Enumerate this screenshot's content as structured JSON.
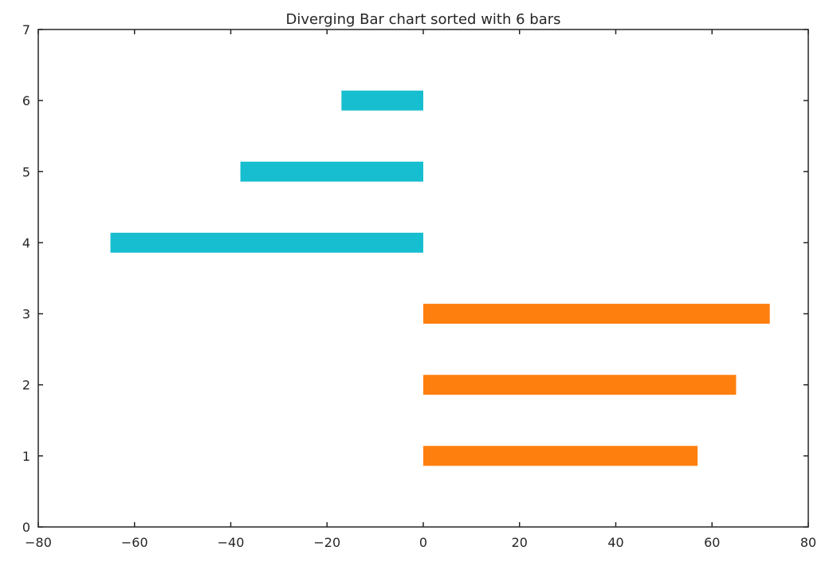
{
  "chart_data": {
    "type": "bar",
    "orientation": "horizontal",
    "title": "Diverging Bar chart sorted with 6 bars",
    "xlabel": "",
    "ylabel": "",
    "xlim": [
      -80,
      80
    ],
    "ylim": [
      0,
      7
    ],
    "xticks": [
      -80,
      -60,
      -40,
      -20,
      0,
      20,
      40,
      60,
      80
    ],
    "yticks": [
      0,
      1,
      2,
      3,
      4,
      5,
      6,
      7
    ],
    "xtick_labels": [
      "−80",
      "−60",
      "−40",
      "−20",
      "0",
      "20",
      "40",
      "60",
      "80"
    ],
    "ytick_labels": [
      "0",
      "1",
      "2",
      "3",
      "4",
      "5",
      "6",
      "7"
    ],
    "grid": false,
    "bars": [
      {
        "y": 1,
        "value": 57,
        "color": "#ff7f0e"
      },
      {
        "y": 2,
        "value": 65,
        "color": "#ff7f0e"
      },
      {
        "y": 3,
        "value": 72,
        "color": "#ff7f0e"
      },
      {
        "y": 4,
        "value": -65,
        "color": "#17becf"
      },
      {
        "y": 5,
        "value": -38,
        "color": "#17becf"
      },
      {
        "y": 6,
        "value": -17,
        "color": "#17becf"
      }
    ],
    "colors": {
      "positive": "#ff7f0e",
      "negative": "#17becf",
      "axis": "#262626"
    }
  }
}
